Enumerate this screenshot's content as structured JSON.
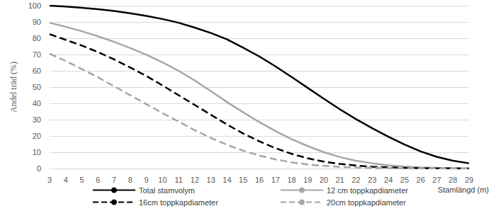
{
  "chart_data": {
    "type": "line",
    "x_label": "Stamlängd (m)",
    "y_label": "Andel träd (%)",
    "x": [
      3,
      4,
      5,
      6,
      7,
      8,
      9,
      10,
      11,
      12,
      13,
      14,
      15,
      16,
      17,
      18,
      19,
      20,
      21,
      22,
      23,
      24,
      25,
      26,
      27,
      28,
      29
    ],
    "xlim": [
      3,
      29
    ],
    "xticks": [
      3,
      4,
      5,
      6,
      7,
      8,
      9,
      10,
      11,
      12,
      13,
      14,
      15,
      16,
      17,
      18,
      19,
      20,
      21,
      22,
      23,
      24,
      25,
      26,
      27,
      28,
      29
    ],
    "ylim": [
      0,
      100
    ],
    "yticks": [
      0,
      10,
      20,
      30,
      40,
      50,
      60,
      70,
      80,
      90,
      100
    ],
    "grid": true,
    "legend": "bottom",
    "series": [
      {
        "name": "Total stamvolym",
        "color": "#000000",
        "line_style": "solid",
        "values": [
          100,
          99.5,
          98.7,
          97.8,
          96.7,
          95.3,
          93.7,
          91.8,
          89.5,
          86.5,
          83.2,
          79.3,
          74.2,
          68.8,
          62.7,
          56.2,
          49.5,
          42.8,
          36.3,
          30.3,
          24.7,
          19.5,
          14.7,
          10.5,
          7.2,
          4.8,
          3.2
        ]
      },
      {
        "name": "12 cm toppkapdiameter",
        "color": "#a6a6a6",
        "line_style": "solid",
        "values": [
          89.5,
          87,
          84.3,
          81.2,
          77.8,
          74,
          69.8,
          65.2,
          60,
          54,
          47.5,
          40.8,
          34.5,
          28.5,
          23,
          18,
          13.8,
          10,
          7,
          4.8,
          3.2,
          2,
          1.2,
          0.7,
          0.4,
          0.2,
          0.1
        ]
      },
      {
        "name": "16cm toppkapdiameter",
        "color": "#000000",
        "line_style": "dashed",
        "values": [
          82.5,
          79,
          75.5,
          71.5,
          67,
          62,
          56.8,
          51,
          45,
          39,
          33,
          27,
          21.5,
          16.7,
          12.5,
          9,
          6.3,
          4.2,
          2.8,
          1.8,
          1.1,
          0.7,
          0.4,
          0.2,
          0.1,
          0.1,
          0
        ]
      },
      {
        "name": "20cm toppkapdiameter",
        "color": "#a6a6a6",
        "line_style": "dashed",
        "values": [
          70.5,
          66,
          61,
          56,
          50.5,
          45,
          39.5,
          34,
          28.8,
          23.5,
          18.8,
          14.5,
          11,
          8,
          5.6,
          3.8,
          2.5,
          1.6,
          1,
          0.6,
          0.4,
          0.2,
          0.1,
          0.1,
          0,
          0,
          0
        ]
      }
    ]
  }
}
